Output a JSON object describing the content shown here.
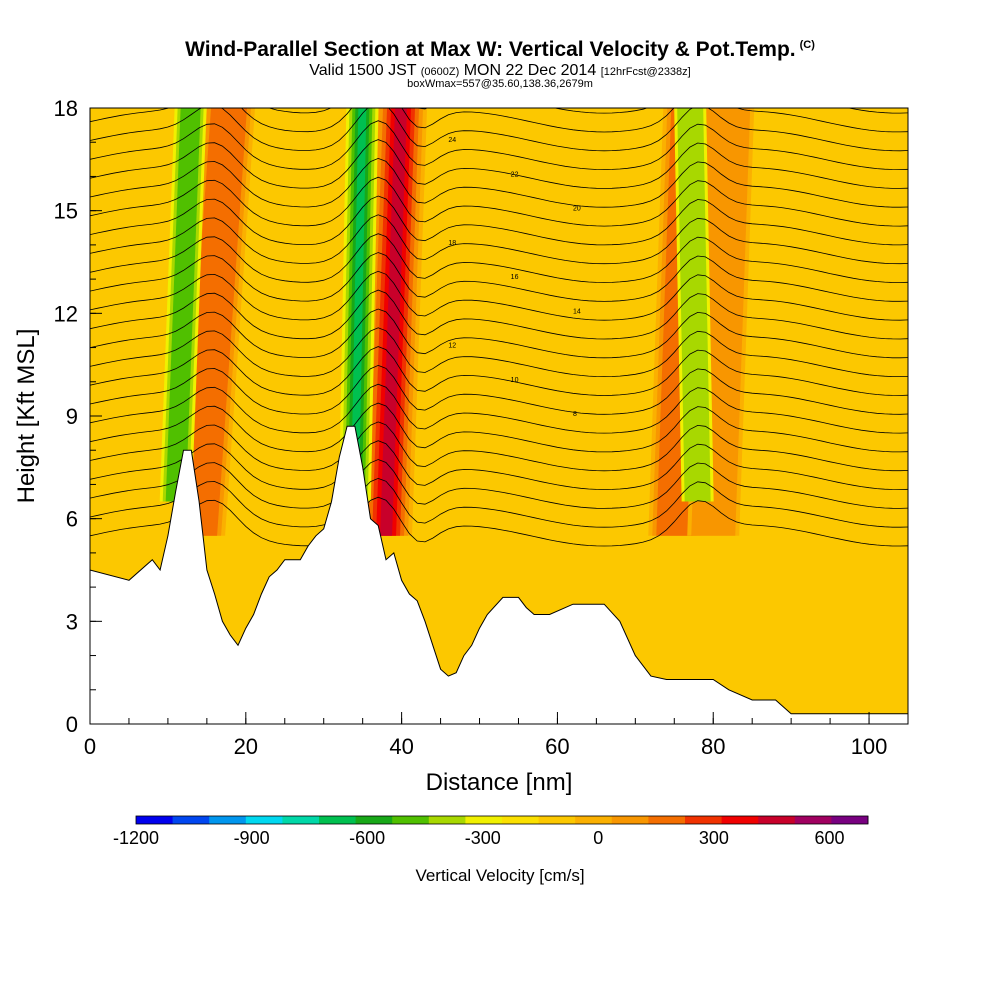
{
  "header": {
    "title": "Wind-Parallel Section at Max W: Vertical Velocity & Pot.Temp.",
    "copyright": "(C)",
    "valid_prefix": "Valid 1500 JST",
    "valid_utc": "(0600Z)",
    "valid_date": "MON 22 Dec 2014",
    "forecast": "[12hrFcst@2338z]",
    "box_info": "boxWmax=557@35.60,138.36,2679m"
  },
  "chart_data": {
    "type": "heatmap",
    "xlabel": "Distance [nm]",
    "ylabel": "Height [Kft MSL]",
    "xlim": [
      0,
      105
    ],
    "ylim": [
      0,
      18
    ],
    "x_ticks": [
      0,
      20,
      40,
      60,
      80,
      100
    ],
    "y_ticks": [
      0,
      3,
      6,
      9,
      12,
      15,
      18
    ],
    "colorbar": {
      "label": "Vertical Velocity [cm/s]",
      "min": -1200,
      "max": 700,
      "step": 100,
      "tick_values": [
        -1200,
        -900,
        -600,
        -300,
        0,
        300,
        600
      ],
      "colors": [
        "#0000ee",
        "#0046f0",
        "#0096ee",
        "#00d8f0",
        "#00d8a8",
        "#00c050",
        "#18a818",
        "#50c000",
        "#a8d800",
        "#f0f000",
        "#fbe000",
        "#fcc800",
        "#fbb000",
        "#f89600",
        "#f46e00",
        "#f03200",
        "#f00000",
        "#c8002a",
        "#a00060",
        "#780080"
      ]
    },
    "terrain_kft": [
      [
        0,
        4.5
      ],
      [
        5,
        4.2
      ],
      [
        8,
        4.8
      ],
      [
        9,
        4.5
      ],
      [
        10,
        5.5
      ],
      [
        11,
        6.8
      ],
      [
        12,
        8.0
      ],
      [
        13,
        8.0
      ],
      [
        14,
        6.5
      ],
      [
        15,
        4.5
      ],
      [
        16,
        3.8
      ],
      [
        17,
        3.0
      ],
      [
        18,
        2.6
      ],
      [
        19,
        2.3
      ],
      [
        20,
        2.8
      ],
      [
        21,
        3.2
      ],
      [
        22,
        3.8
      ],
      [
        23,
        4.3
      ],
      [
        24,
        4.5
      ],
      [
        25,
        4.8
      ],
      [
        27,
        4.8
      ],
      [
        28,
        5.2
      ],
      [
        29,
        5.5
      ],
      [
        30,
        5.7
      ],
      [
        31,
        6.5
      ],
      [
        32,
        7.8
      ],
      [
        33,
        8.7
      ],
      [
        34,
        8.7
      ],
      [
        35,
        7.5
      ],
      [
        36,
        6.0
      ],
      [
        37,
        5.8
      ],
      [
        38,
        4.8
      ],
      [
        39,
        5.0
      ],
      [
        40,
        4.2
      ],
      [
        41,
        3.8
      ],
      [
        42,
        3.6
      ],
      [
        43,
        3.0
      ],
      [
        44,
        2.3
      ],
      [
        45,
        1.6
      ],
      [
        46,
        1.4
      ],
      [
        47,
        1.5
      ],
      [
        48,
        2.0
      ],
      [
        49,
        2.3
      ],
      [
        50,
        2.8
      ],
      [
        51,
        3.2
      ],
      [
        53,
        3.7
      ],
      [
        55,
        3.7
      ],
      [
        56,
        3.4
      ],
      [
        57,
        3.2
      ],
      [
        59,
        3.2
      ],
      [
        62,
        3.5
      ],
      [
        66,
        3.5
      ],
      [
        68,
        3.0
      ],
      [
        70,
        2.0
      ],
      [
        72,
        1.4
      ],
      [
        74,
        1.3
      ],
      [
        80,
        1.3
      ],
      [
        82,
        1.0
      ],
      [
        85,
        0.7
      ],
      [
        88,
        0.7
      ],
      [
        90,
        0.3
      ],
      [
        105,
        0.3
      ]
    ],
    "updraft_plumes_nm": [
      {
        "x_top": 18,
        "x_bottom": 14,
        "peak_cms": 300
      },
      {
        "x_top": 40,
        "x_bottom": 38,
        "peak_cms": 600
      },
      {
        "x_top": 77,
        "x_bottom": 75,
        "peak_cms": 300
      },
      {
        "x_top": 82,
        "x_bottom": 80,
        "peak_cms": 200
      }
    ],
    "downdraft_plumes_nm": [
      {
        "x_top": 13,
        "x_bottom": 11,
        "min_cms": -500
      },
      {
        "x_top": 35,
        "x_bottom": 34,
        "min_cms": -700
      },
      {
        "x_top": 77,
        "x_bottom": 78,
        "min_cms": -400
      }
    ],
    "contour_labels": [
      "24",
      "22",
      "20",
      "18",
      "16",
      "14",
      "12",
      "10",
      "8"
    ]
  }
}
